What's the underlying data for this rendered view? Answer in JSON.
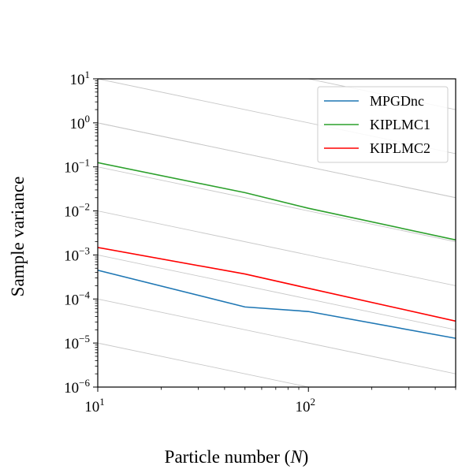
{
  "chart_data": {
    "type": "line",
    "xscale": "log",
    "yscale": "log",
    "title": "",
    "xlabel": {
      "text": "Particle number (",
      "var": "N",
      "suffix": ")"
    },
    "ylabel": "Sample variance",
    "xlim": [
      10,
      500
    ],
    "ylim": [
      1e-06,
      10
    ],
    "xticks": [
      {
        "base": "10",
        "exp": "1",
        "value": 10
      },
      {
        "base": "10",
        "exp": "2",
        "value": 100
      }
    ],
    "yticks": [
      {
        "base": "10",
        "exp": "−6",
        "value": 1e-06
      },
      {
        "base": "10",
        "exp": "−5",
        "value": 1e-05
      },
      {
        "base": "10",
        "exp": "−4",
        "value": 0.0001
      },
      {
        "base": "10",
        "exp": "−3",
        "value": 0.001
      },
      {
        "base": "10",
        "exp": "−2",
        "value": 0.01
      },
      {
        "base": "10",
        "exp": "−1",
        "value": 0.1
      },
      {
        "base": "10",
        "exp": "0",
        "value": 1
      },
      {
        "base": "10",
        "exp": "1",
        "value": 10
      }
    ],
    "reference_lines": {
      "slope": -1,
      "intercepts_at_x10": [
        10,
        1,
        0.1,
        0.01,
        0.001,
        0.0001,
        1e-05
      ],
      "intercepts_at_x100": [
        10,
        0.1
      ],
      "color": "#c8c8c8"
    },
    "legend_position": "top-right",
    "series": [
      {
        "name": "MPGDnc",
        "color": "#1f77b4",
        "x": [
          10,
          50,
          100,
          500
        ],
        "y": [
          0.00045,
          6.6e-05,
          5.2e-05,
          1.28e-05
        ]
      },
      {
        "name": "KIPLMC1",
        "color": "#2ca02c",
        "x": [
          10,
          50,
          100,
          500
        ],
        "y": [
          0.125,
          0.026,
          0.0115,
          0.0022
        ]
      },
      {
        "name": "KIPLMC2",
        "color": "#ff0000",
        "x": [
          10,
          50,
          100,
          500
        ],
        "y": [
          0.00148,
          0.00037,
          0.000175,
          3.15e-05
        ]
      }
    ]
  }
}
